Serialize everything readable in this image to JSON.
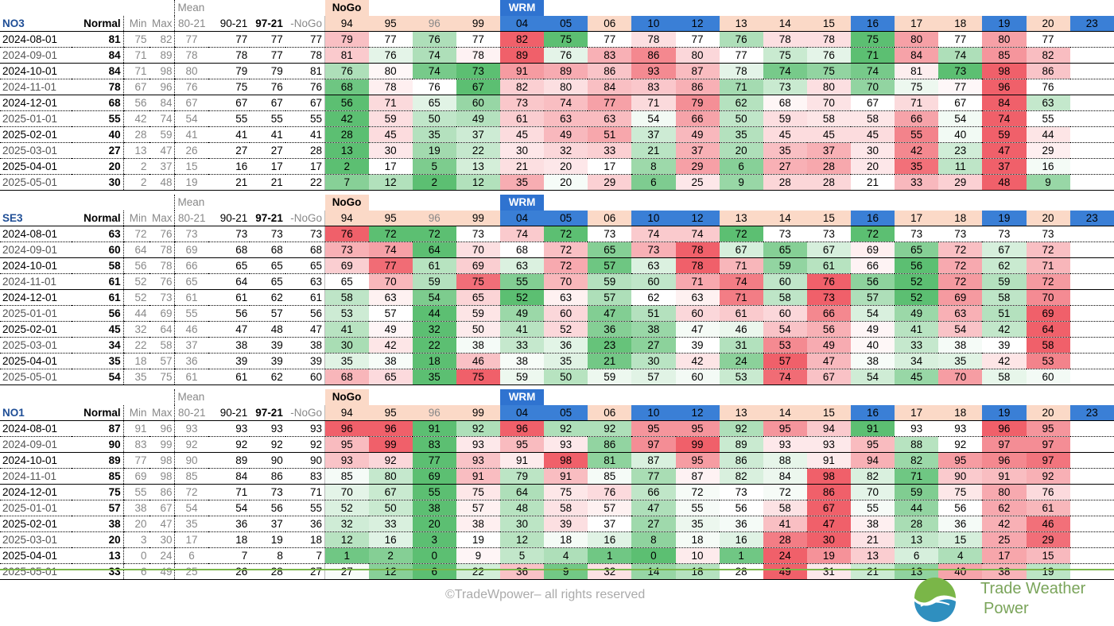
{
  "headers": {
    "tag_mean": "Mean",
    "tag_nogo": "NoGo",
    "tag_wrm": "WRM",
    "normal": "Normal",
    "min": "Min",
    "max": "Max",
    "c8021": "80-21",
    "c9021": "90-21",
    "c9721": "97-21",
    "nogo_col": "-NoGo",
    "years": [
      "94",
      "95",
      "96",
      "99",
      "04",
      "05",
      "06",
      "10",
      "12",
      "13",
      "14",
      "15",
      "16",
      "17",
      "18",
      "19",
      "20",
      "23"
    ]
  },
  "blocks": [
    {
      "region": "NO3",
      "rows": [
        {
          "date": "2024-08-01",
          "normal": "81",
          "min": "75",
          "max": "82",
          "m8021": "77",
          "m9021": "77",
          "m9721": "77",
          "nogo": "77",
          "vals": [
            "79",
            "77",
            "76",
            "77",
            "82",
            "75",
            "77",
            "78",
            "77",
            "76",
            "78",
            "78",
            "75",
            "80",
            "77",
            "80",
            "77",
            ""
          ]
        },
        {
          "date": "2024-09-01",
          "normal": "84",
          "min": "71",
          "max": "89",
          "m8021": "78",
          "m9021": "78",
          "m9721": "77",
          "nogo": "78",
          "vals": [
            "81",
            "76",
            "74",
            "78",
            "89",
            "76",
            "83",
            "86",
            "80",
            "77",
            "75",
            "76",
            "71",
            "84",
            "74",
            "85",
            "82",
            ""
          ]
        },
        {
          "date": "2024-10-01",
          "normal": "84",
          "min": "71",
          "max": "98",
          "m8021": "80",
          "m9021": "79",
          "m9721": "79",
          "nogo": "81",
          "vals": [
            "76",
            "80",
            "74",
            "73",
            "91",
            "89",
            "86",
            "93",
            "87",
            "78",
            "74",
            "75",
            "74",
            "81",
            "73",
            "98",
            "86",
            ""
          ]
        },
        {
          "date": "2024-11-01",
          "normal": "78",
          "min": "67",
          "max": "96",
          "m8021": "76",
          "m9021": "75",
          "m9721": "76",
          "nogo": "76",
          "vals": [
            "68",
            "78",
            "76",
            "67",
            "82",
            "80",
            "84",
            "83",
            "86",
            "71",
            "73",
            "80",
            "70",
            "75",
            "77",
            "96",
            "76",
            ""
          ]
        },
        {
          "date": "2024-12-01",
          "normal": "68",
          "min": "56",
          "max": "84",
          "m8021": "67",
          "m9021": "67",
          "m9721": "67",
          "nogo": "67",
          "vals": [
            "56",
            "71",
            "65",
            "60",
            "73",
            "74",
            "77",
            "71",
            "79",
            "62",
            "68",
            "70",
            "67",
            "71",
            "67",
            "84",
            "63",
            ""
          ]
        },
        {
          "date": "2025-01-01",
          "normal": "55",
          "min": "42",
          "max": "74",
          "m8021": "54",
          "m9021": "55",
          "m9721": "55",
          "nogo": "55",
          "vals": [
            "42",
            "59",
            "50",
            "49",
            "61",
            "63",
            "63",
            "54",
            "66",
            "50",
            "59",
            "58",
            "58",
            "66",
            "54",
            "74",
            "55",
            ""
          ]
        },
        {
          "date": "2025-02-01",
          "normal": "40",
          "min": "28",
          "max": "59",
          "m8021": "41",
          "m9021": "41",
          "m9721": "41",
          "nogo": "41",
          "vals": [
            "28",
            "45",
            "35",
            "37",
            "45",
            "49",
            "51",
            "37",
            "49",
            "35",
            "45",
            "45",
            "45",
            "55",
            "40",
            "59",
            "44",
            ""
          ]
        },
        {
          "date": "2025-03-01",
          "normal": "27",
          "min": "13",
          "max": "47",
          "m8021": "26",
          "m9021": "27",
          "m9721": "27",
          "nogo": "28",
          "vals": [
            "13",
            "30",
            "19",
            "22",
            "30",
            "32",
            "33",
            "21",
            "37",
            "20",
            "35",
            "37",
            "30",
            "42",
            "23",
            "47",
            "29",
            ""
          ]
        },
        {
          "date": "2025-04-01",
          "normal": "20",
          "min": "2",
          "max": "37",
          "m8021": "15",
          "m9021": "16",
          "m9721": "17",
          "nogo": "17",
          "vals": [
            "2",
            "17",
            "5",
            "13",
            "21",
            "20",
            "17",
            "8",
            "29",
            "6",
            "27",
            "28",
            "20",
            "35",
            "11",
            "37",
            "16",
            ""
          ]
        },
        {
          "date": "2025-05-01",
          "normal": "30",
          "min": "2",
          "max": "48",
          "m8021": "19",
          "m9021": "21",
          "m9721": "21",
          "nogo": "22",
          "vals": [
            "7",
            "12",
            "2",
            "12",
            "35",
            "20",
            "29",
            "6",
            "25",
            "9",
            "28",
            "28",
            "21",
            "33",
            "29",
            "48",
            "9",
            ""
          ]
        }
      ]
    },
    {
      "region": "SE3",
      "rows": [
        {
          "date": "2024-08-01",
          "normal": "63",
          "min": "72",
          "max": "76",
          "m8021": "73",
          "m9021": "73",
          "m9721": "73",
          "nogo": "73",
          "vals": [
            "76",
            "72",
            "72",
            "73",
            "74",
            "72",
            "73",
            "74",
            "74",
            "72",
            "73",
            "73",
            "72",
            "73",
            "73",
            "73",
            "73",
            ""
          ]
        },
        {
          "date": "2024-09-01",
          "normal": "60",
          "min": "64",
          "max": "78",
          "m8021": "69",
          "m9021": "68",
          "m9721": "68",
          "nogo": "68",
          "vals": [
            "73",
            "74",
            "64",
            "70",
            "68",
            "72",
            "65",
            "73",
            "78",
            "67",
            "65",
            "67",
            "69",
            "65",
            "72",
            "67",
            "72",
            ""
          ]
        },
        {
          "date": "2024-10-01",
          "normal": "58",
          "min": "56",
          "max": "78",
          "m8021": "66",
          "m9021": "65",
          "m9721": "65",
          "nogo": "65",
          "vals": [
            "69",
            "77",
            "61",
            "69",
            "63",
            "72",
            "57",
            "63",
            "78",
            "71",
            "59",
            "61",
            "66",
            "56",
            "72",
            "62",
            "71",
            ""
          ]
        },
        {
          "date": "2024-11-01",
          "normal": "61",
          "min": "52",
          "max": "76",
          "m8021": "65",
          "m9021": "64",
          "m9721": "65",
          "nogo": "63",
          "vals": [
            "65",
            "70",
            "59",
            "75",
            "55",
            "70",
            "59",
            "60",
            "71",
            "74",
            "60",
            "76",
            "56",
            "52",
            "72",
            "59",
            "72",
            ""
          ]
        },
        {
          "date": "2024-12-01",
          "normal": "61",
          "min": "52",
          "max": "73",
          "m8021": "61",
          "m9021": "61",
          "m9721": "62",
          "nogo": "61",
          "vals": [
            "58",
            "63",
            "54",
            "65",
            "52",
            "63",
            "57",
            "62",
            "63",
            "71",
            "58",
            "73",
            "57",
            "52",
            "69",
            "58",
            "70",
            ""
          ]
        },
        {
          "date": "2025-01-01",
          "normal": "56",
          "min": "44",
          "max": "69",
          "m8021": "55",
          "m9021": "56",
          "m9721": "57",
          "nogo": "56",
          "vals": [
            "53",
            "57",
            "44",
            "59",
            "49",
            "60",
            "47",
            "51",
            "60",
            "61",
            "60",
            "66",
            "54",
            "49",
            "63",
            "51",
            "69",
            ""
          ]
        },
        {
          "date": "2025-02-01",
          "normal": "45",
          "min": "32",
          "max": "64",
          "m8021": "46",
          "m9021": "47",
          "m9721": "48",
          "nogo": "47",
          "vals": [
            "41",
            "49",
            "32",
            "50",
            "41",
            "52",
            "36",
            "38",
            "47",
            "46",
            "54",
            "56",
            "49",
            "41",
            "54",
            "42",
            "64",
            ""
          ]
        },
        {
          "date": "2025-03-01",
          "normal": "34",
          "min": "22",
          "max": "58",
          "m8021": "37",
          "m9021": "38",
          "m9721": "39",
          "nogo": "38",
          "vals": [
            "30",
            "42",
            "22",
            "38",
            "33",
            "36",
            "23",
            "27",
            "39",
            "31",
            "53",
            "49",
            "40",
            "33",
            "38",
            "39",
            "58",
            ""
          ]
        },
        {
          "date": "2025-04-01",
          "normal": "35",
          "min": "18",
          "max": "57",
          "m8021": "36",
          "m9021": "39",
          "m9721": "39",
          "nogo": "39",
          "vals": [
            "35",
            "38",
            "18",
            "46",
            "38",
            "35",
            "21",
            "30",
            "42",
            "24",
            "57",
            "47",
            "38",
            "34",
            "35",
            "42",
            "53",
            ""
          ]
        },
        {
          "date": "2025-05-01",
          "normal": "54",
          "min": "35",
          "max": "75",
          "m8021": "61",
          "m9021": "61",
          "m9721": "62",
          "nogo": "60",
          "vals": [
            "68",
            "65",
            "35",
            "75",
            "59",
            "50",
            "59",
            "57",
            "60",
            "53",
            "74",
            "67",
            "54",
            "45",
            "70",
            "58",
            "60",
            ""
          ]
        }
      ]
    },
    {
      "region": "NO1",
      "rows": [
        {
          "date": "2024-08-01",
          "normal": "87",
          "min": "91",
          "max": "96",
          "m8021": "93",
          "m9021": "93",
          "m9721": "93",
          "nogo": "93",
          "vals": [
            "96",
            "96",
            "91",
            "92",
            "96",
            "92",
            "92",
            "95",
            "95",
            "92",
            "95",
            "94",
            "91",
            "93",
            "93",
            "96",
            "95",
            ""
          ]
        },
        {
          "date": "2024-09-01",
          "normal": "90",
          "min": "83",
          "max": "99",
          "m8021": "92",
          "m9021": "92",
          "m9721": "92",
          "nogo": "92",
          "vals": [
            "95",
            "99",
            "83",
            "93",
            "95",
            "93",
            "86",
            "97",
            "99",
            "89",
            "93",
            "93",
            "95",
            "88",
            "92",
            "97",
            "97",
            ""
          ]
        },
        {
          "date": "2024-10-01",
          "normal": "89",
          "min": "77",
          "max": "98",
          "m8021": "90",
          "m9021": "89",
          "m9721": "90",
          "nogo": "90",
          "vals": [
            "93",
            "92",
            "77",
            "93",
            "91",
            "98",
            "81",
            "87",
            "95",
            "86",
            "88",
            "91",
            "94",
            "82",
            "95",
            "96",
            "97",
            ""
          ]
        },
        {
          "date": "2024-11-01",
          "normal": "85",
          "min": "69",
          "max": "98",
          "m8021": "85",
          "m9021": "84",
          "m9721": "86",
          "nogo": "83",
          "vals": [
            "85",
            "80",
            "69",
            "91",
            "79",
            "91",
            "85",
            "77",
            "87",
            "82",
            "84",
            "98",
            "82",
            "71",
            "90",
            "91",
            "92",
            ""
          ]
        },
        {
          "date": "2024-12-01",
          "normal": "75",
          "min": "55",
          "max": "86",
          "m8021": "72",
          "m9021": "71",
          "m9721": "73",
          "nogo": "71",
          "vals": [
            "70",
            "67",
            "55",
            "75",
            "64",
            "75",
            "76",
            "66",
            "72",
            "73",
            "72",
            "86",
            "70",
            "59",
            "75",
            "80",
            "76",
            ""
          ]
        },
        {
          "date": "2025-01-01",
          "normal": "57",
          "min": "38",
          "max": "67",
          "m8021": "54",
          "m9021": "54",
          "m9721": "56",
          "nogo": "55",
          "vals": [
            "52",
            "50",
            "38",
            "57",
            "48",
            "58",
            "57",
            "47",
            "55",
            "56",
            "58",
            "67",
            "55",
            "44",
            "56",
            "62",
            "61",
            ""
          ]
        },
        {
          "date": "2025-02-01",
          "normal": "38",
          "min": "20",
          "max": "47",
          "m8021": "35",
          "m9021": "36",
          "m9721": "37",
          "nogo": "36",
          "vals": [
            "32",
            "33",
            "20",
            "38",
            "30",
            "39",
            "37",
            "27",
            "35",
            "36",
            "41",
            "47",
            "38",
            "28",
            "36",
            "42",
            "46",
            ""
          ]
        },
        {
          "date": "2025-03-01",
          "normal": "20",
          "min": "3",
          "max": "30",
          "m8021": "17",
          "m9021": "18",
          "m9721": "19",
          "nogo": "18",
          "vals": [
            "12",
            "16",
            "3",
            "19",
            "12",
            "18",
            "16",
            "8",
            "18",
            "16",
            "28",
            "30",
            "21",
            "13",
            "15",
            "25",
            "29",
            ""
          ]
        },
        {
          "date": "2025-04-01",
          "normal": "13",
          "min": "0",
          "max": "24",
          "m8021": "6",
          "m9021": "7",
          "m9721": "8",
          "nogo": "7",
          "vals": [
            "1",
            "2",
            "0",
            "9",
            "5",
            "4",
            "1",
            "0",
            "10",
            "1",
            "24",
            "19",
            "13",
            "6",
            "4",
            "17",
            "15",
            ""
          ]
        },
        {
          "date": "2025-05-01",
          "normal": "33",
          "min": "6",
          "max": "49",
          "m8021": "25",
          "m9021": "26",
          "m9721": "28",
          "nogo": "27",
          "vals": [
            "27",
            "12",
            "6",
            "22",
            "36",
            "9",
            "32",
            "14",
            "18",
            "28",
            "49",
            "31",
            "21",
            "13",
            "40",
            "38",
            "19",
            ""
          ]
        }
      ]
    }
  ],
  "footer": {
    "copyright": "©TradeWpower– all rights reserved",
    "logo_line1": "Trade Weather",
    "logo_line2": "Power"
  },
  "colors": {
    "green_strong": "#5cbf72",
    "white": "#ffffff",
    "red_strong": "#f0606a",
    "wrm_blue": "#3a7fd6",
    "peach": "#fbd9c7",
    "region_blue": "#1f4e96"
  }
}
